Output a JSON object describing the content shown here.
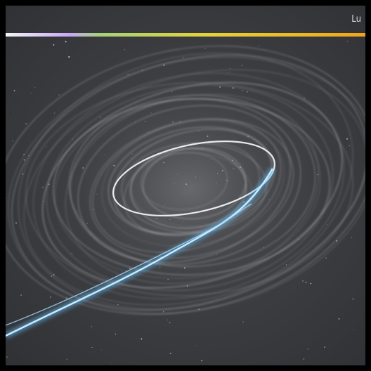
{
  "image": {
    "corner_label": "Lu",
    "colors": {
      "background": "#3d3e41",
      "frame": "#000000",
      "spiral": "#cfd6df",
      "streak": "#7fc8f5",
      "bar_gradient": [
        "#ffffff",
        "#b07cf0",
        "#9fd36a",
        "#d8d23a",
        "#f0a21a"
      ]
    }
  }
}
